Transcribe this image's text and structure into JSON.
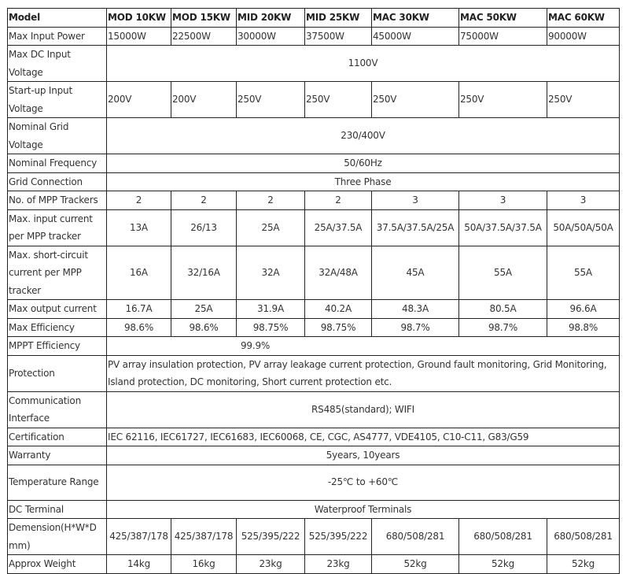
{
  "rows": [
    {
      "label": "Model",
      "cells": [
        "MOD 10KW",
        "MOD 15KW",
        "MID 20KW",
        "MID 25KW",
        "MAC 30KW",
        "MAC 50KW",
        "MAC 60KW"
      ],
      "align": "l",
      "h": 23
    },
    {
      "label": "Max Input Power",
      "cells": [
        "15000W",
        "22500W",
        "30000W",
        "37500W",
        "45000W",
        "75000W",
        "90000W"
      ],
      "align": "l",
      "h": 23
    },
    {
      "label": "Max DC Input Voltage",
      "cells": [
        "1100V"
      ],
      "align": "c",
      "h": 45
    },
    {
      "label": "Start-up Input Voltage",
      "cells": [
        "200V",
        "200V",
        "250V",
        "250V",
        "250V",
        "250V",
        "250V"
      ],
      "align": "l",
      "h": 45
    },
    {
      "label": "Nominal Grid Voltage",
      "cells": [
        "230/400V"
      ],
      "align": "c",
      "h": 45
    },
    {
      "label": "Nominal Frequency",
      "cells": [
        "50/60Hz"
      ],
      "align": "c",
      "h": 23
    },
    {
      "label": "Grid Connection",
      "cells": [
        "Three Phase"
      ],
      "align": "c",
      "h": 23
    },
    {
      "label": "No. of MPP Trackers",
      "cells": [
        "2",
        "2",
        "2",
        "2",
        "3",
        "3",
        "3"
      ],
      "align": "c",
      "h": 23
    },
    {
      "label": "Max. input current per MPP tracker",
      "cells": [
        "13A",
        "26/13",
        "25A",
        "25A/37.5A",
        "37.5A/37.5A/25A",
        "50A/37.5A/37.5A",
        "50A/50A/50A"
      ],
      "align": "c",
      "h": 45
    },
    {
      "label": "Max. short-circuit current per MPP tracker",
      "cells": [
        "16A",
        "32/16A",
        "32A",
        "32A/48A",
        "45A",
        "55A",
        "55A"
      ],
      "align": "c",
      "h": 68
    },
    {
      "label": "Max output current",
      "cells": [
        "16.7A",
        "25A",
        "31.9A",
        "40.2A",
        "48.3A",
        "80.5A",
        "96.6A"
      ],
      "align": "c",
      "h": 23
    },
    {
      "label": "Max Efficiency",
      "cells": [
        "98.6%",
        "98.6%",
        "98.75%",
        "98.75%",
        "98.7%",
        "98.7%",
        "98.8%"
      ],
      "align": "c",
      "h": 23
    },
    {
      "label": "MPPT Efficiency",
      "cells": [
        "99.9%"
      ],
      "align": "mppt",
      "h": 23
    },
    {
      "label": "Protection",
      "cells": [
        "PV array insulation protection, PV array leakage current protection, Ground fault monitoring, Grid Monitoring, Island protection, DC monitoring, Short current protection etc."
      ],
      "align": "l wrap",
      "h": 45
    },
    {
      "label": "Communication Interface",
      "cells": [
        "RS485(standard); WIFI"
      ],
      "align": "c",
      "h": 45
    },
    {
      "label": "Certification",
      "cells": [
        "IEC 62116, IEC61727, IEC61683, IEC60068, CE, CGC, AS4777, VDE4105, C10-C11, G83/G59"
      ],
      "align": "l",
      "h": 23
    },
    {
      "label": "Warranty",
      "cells": [
        "5years, 10years"
      ],
      "align": "c",
      "h": 23
    },
    {
      "label": "Temperature Range",
      "cells": [
        "-25℃ to +60℃"
      ],
      "align": "c",
      "h": 45
    },
    {
      "label": "DC Terminal",
      "cells": [
        "Waterproof Terminals"
      ],
      "align": "c",
      "h": 23
    },
    {
      "label": "Demension(H*W*D mm)",
      "cells": [
        "425/387/178",
        "425/387/178",
        "525/395/222",
        "525/395/222",
        "680/508/281",
        "680/508/281",
        "680/508/281"
      ],
      "align": "c",
      "h": 45
    },
    {
      "label": "Approx Weight",
      "cells": [
        "14kg",
        "16kg",
        "23kg",
        "23kg",
        "52kg",
        "52kg",
        "52kg"
      ],
      "align": "c",
      "h": 24
    }
  ]
}
